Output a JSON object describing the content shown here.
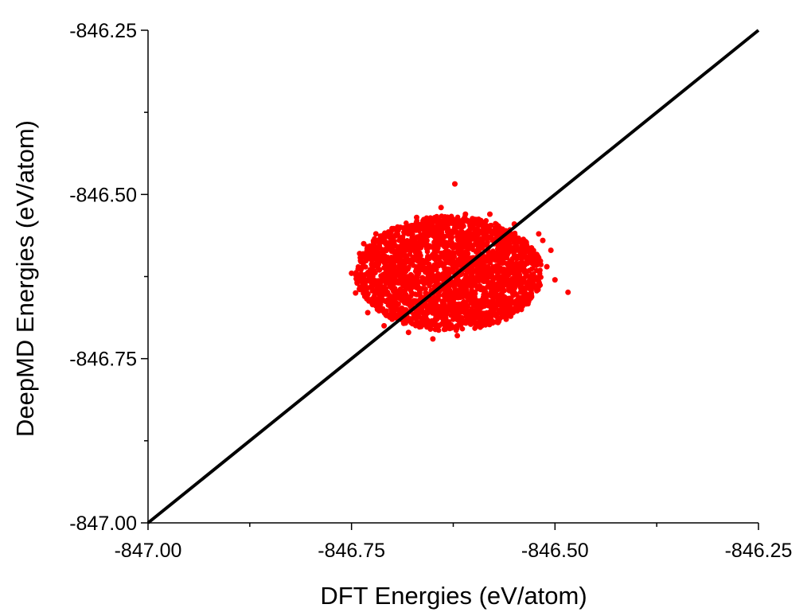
{
  "chart_data": {
    "type": "scatter",
    "title": "",
    "xlabel": "DFT Energies (eV/atom)",
    "ylabel": "DeepMD Energies (eV/atom)",
    "xlim": [
      -847.0,
      -846.25
    ],
    "ylim": [
      -847.0,
      -846.25
    ],
    "x_ticks": [
      -847.0,
      -846.75,
      -846.5,
      -846.25
    ],
    "x_tick_labels": [
      "-847.00",
      "-846.75",
      "-846.50",
      "-846.25"
    ],
    "y_ticks": [
      -847.0,
      -846.75,
      -846.5,
      -846.25
    ],
    "y_tick_labels": [
      "-847.00",
      "-846.75",
      "-846.50",
      "-846.25"
    ],
    "grid": false,
    "legend": "none",
    "series": [
      {
        "kind": "scatter",
        "color": "#ff0000",
        "points": [
          [
            -846.623,
            -846.484
          ],
          [
            -846.64,
            -846.52
          ],
          [
            -846.61,
            -846.53
          ],
          [
            -846.66,
            -846.54
          ],
          [
            -846.58,
            -846.53
          ],
          [
            -846.69,
            -846.55
          ],
          [
            -846.55,
            -846.545
          ],
          [
            -846.52,
            -846.56
          ],
          [
            -846.72,
            -846.56
          ],
          [
            -846.74,
            -846.59
          ],
          [
            -846.75,
            -846.62
          ],
          [
            -846.745,
            -846.65
          ],
          [
            -846.73,
            -846.68
          ],
          [
            -846.71,
            -846.7
          ],
          [
            -846.68,
            -846.71
          ],
          [
            -846.65,
            -846.72
          ],
          [
            -846.62,
            -846.715
          ],
          [
            -846.59,
            -846.7
          ],
          [
            -846.56,
            -846.69
          ],
          [
            -846.54,
            -846.67
          ],
          [
            -846.52,
            -846.64
          ],
          [
            -846.51,
            -846.61
          ],
          [
            -846.505,
            -846.585
          ],
          [
            -846.515,
            -846.57
          ],
          [
            -846.484,
            -846.649
          ],
          [
            -846.53,
            -846.658
          ],
          [
            -846.57,
            -846.695
          ],
          [
            -846.7,
            -846.69
          ],
          [
            -846.735,
            -846.575
          ],
          [
            -846.67,
            -846.535
          ],
          [
            -846.6,
            -846.54
          ],
          [
            -846.5,
            -846.63
          ]
        ]
      },
      {
        "kind": "cluster",
        "color": "#ff0000",
        "center": [
          -846.63,
          -846.62
        ],
        "spread": [
          0.05,
          0.038
        ]
      },
      {
        "kind": "line",
        "color": "#000000",
        "x": [
          -847.0,
          -846.25
        ],
        "y": [
          -847.0,
          -846.25
        ]
      }
    ]
  }
}
